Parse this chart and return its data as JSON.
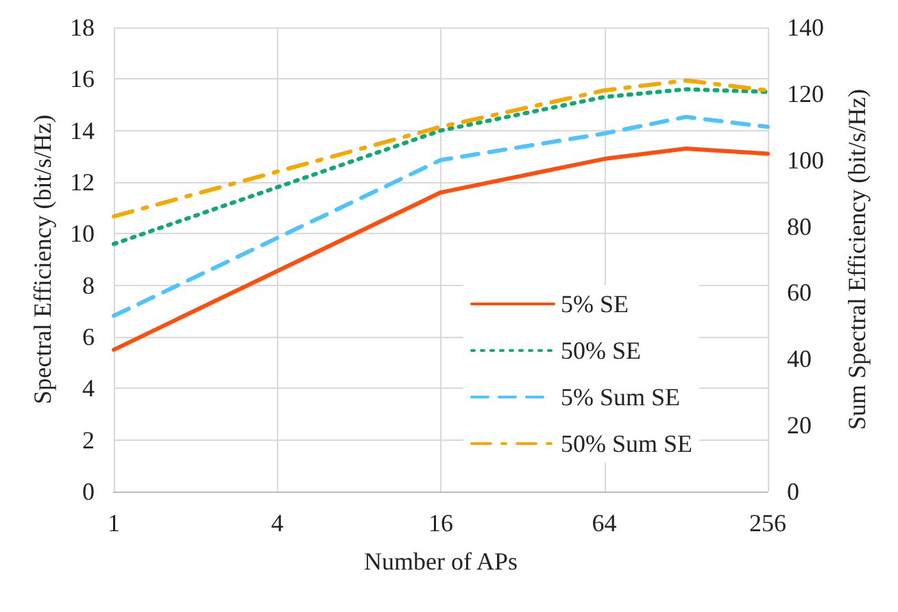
{
  "chart_data": {
    "type": "line",
    "xlabel": "Number of APs",
    "ylabel": "Spectral Efficiency (bit/s/Hz)",
    "y2label": "Sum Spectral Efficiency (bit/s/Hz)",
    "x": [
      1,
      16,
      64,
      128,
      256
    ],
    "series": [
      {
        "name": "5% SE",
        "color": "#ff4f0f",
        "line_style": "solid",
        "values": [
          5.5,
          11.6,
          12.9,
          13.3,
          13.1
        ]
      },
      {
        "name": "50% SE",
        "color": "#10a878",
        "line_style": "dotted",
        "values": [
          9.6,
          14.0,
          15.3,
          15.6,
          15.5
        ]
      },
      {
        "name": "5% Sum SE",
        "color": "#4dc3ff",
        "line_style": "dashed",
        "axis": "y2",
        "values": [
          53,
          100,
          108,
          113,
          110
        ]
      },
      {
        "name": "50% Sum SE",
        "color": "#f5a800",
        "line_style": "dashdot",
        "axis": "y2",
        "values": [
          83,
          110,
          121,
          124,
          121
        ]
      }
    ],
    "log": "x",
    "xlim": [
      1,
      256
    ],
    "xticks": [
      1,
      4,
      16,
      64,
      256
    ],
    "ylim": [
      0,
      18
    ],
    "yticks": [
      0,
      2,
      4,
      6,
      8,
      10,
      12,
      14,
      16,
      18
    ],
    "y2lim": [
      0,
      140
    ],
    "y2ticks": [
      0,
      20,
      40,
      60,
      80,
      100,
      120,
      140
    ],
    "grid": true,
    "legend": "right",
    "marker": "none"
  }
}
